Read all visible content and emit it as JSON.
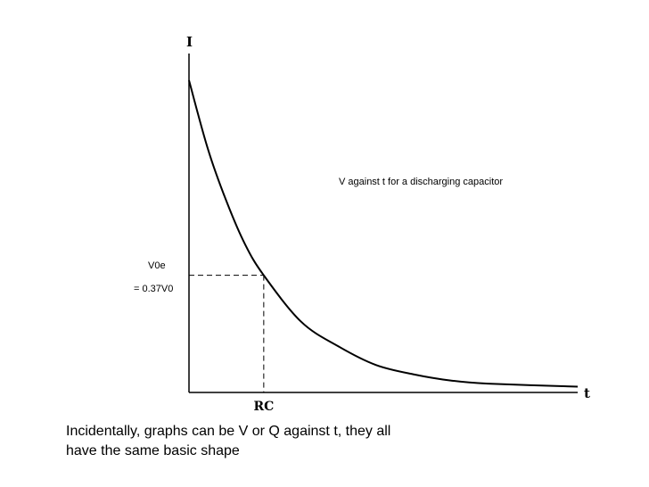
{
  "chart_data": {
    "type": "line",
    "title": "V against t for a discharging capacitor",
    "ylabel": "I",
    "xlabel": "t",
    "series": [
      {
        "values": [
          {
            "x": 0,
            "y": 1.0
          },
          {
            "x": 0.25,
            "y": 0.78
          },
          {
            "x": 0.5,
            "y": 0.61
          },
          {
            "x": 0.75,
            "y": 0.47
          },
          {
            "x": 1.0,
            "y": 0.37
          },
          {
            "x": 1.5,
            "y": 0.22
          },
          {
            "x": 2.0,
            "y": 0.14
          },
          {
            "x": 2.5,
            "y": 0.08
          },
          {
            "x": 3.0,
            "y": 0.05
          },
          {
            "x": 3.5,
            "y": 0.03
          },
          {
            "x": 4.0,
            "y": 0.02
          },
          {
            "x": 5.2,
            "y": 0.01
          }
        ]
      }
    ],
    "xlim": [
      0,
      5.2
    ],
    "ylim": [
      0,
      1.0
    ],
    "marker": {
      "x": 1.0,
      "y": 0.37,
      "x_label": "RC",
      "y_label_line1": "V0e",
      "y_label_line2": "= 0.37V0"
    },
    "grid": false
  },
  "caption": {
    "line1": "Incidentally, graphs can be V or Q against t, they all",
    "line2": "have the same basic shape"
  }
}
